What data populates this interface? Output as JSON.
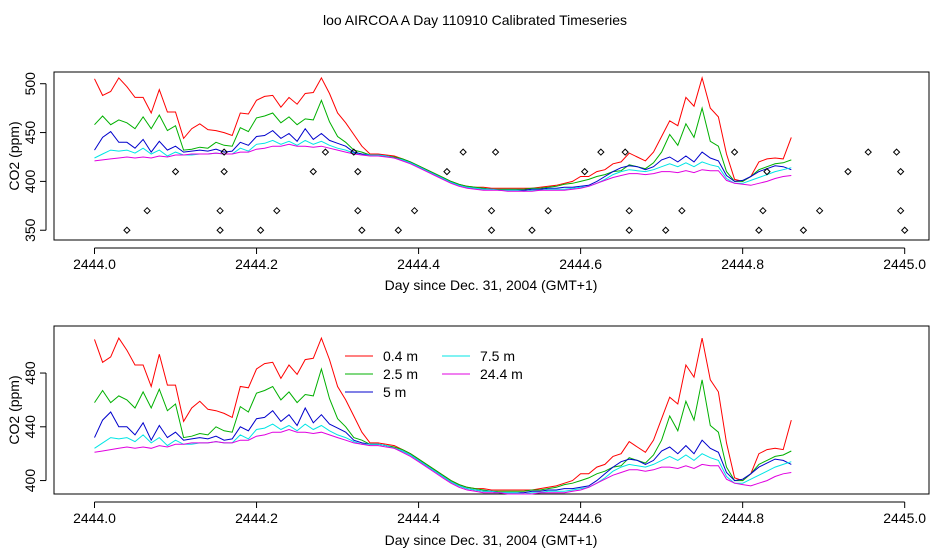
{
  "figure_title": "loo AIRCOA A  Day 110910  Calibrated Timeseries",
  "chart_data": [
    {
      "type": "line",
      "panel": "top",
      "xlabel": "Day since Dec. 31, 2004 (GMT+1)",
      "ylabel": "CO2 (ppm)",
      "xlim": [
        2443.95,
        2445.03
      ],
      "ylim": [
        340,
        512
      ],
      "x_ticks": [
        "2444.0",
        "2444.2",
        "2444.4",
        "2444.6",
        "2444.8",
        "2445.0"
      ],
      "y_ticks": [
        "350",
        "400",
        "450",
        "500"
      ],
      "x_tick_values": [
        2444.0,
        2444.2,
        2444.4,
        2444.6,
        2444.8,
        2445.0
      ],
      "y_tick_values": [
        350,
        400,
        450,
        500
      ],
      "grid": false,
      "legend": "none",
      "series": [
        {
          "name": "0.4 m",
          "color": "#ff0000",
          "values": [
            505,
            488,
            492,
            506,
            497,
            486,
            486,
            470,
            494,
            471,
            471,
            444,
            454,
            459,
            453,
            452,
            450,
            447,
            470,
            469,
            483,
            487,
            488,
            476,
            486,
            479,
            490,
            491,
            506,
            490,
            470,
            460,
            448,
            436,
            428,
            428,
            427,
            426,
            423,
            420,
            416,
            412,
            408,
            404,
            400,
            397,
            395,
            394,
            394,
            393,
            393,
            393,
            393,
            393,
            393,
            394,
            395,
            396,
            398,
            400,
            405,
            405,
            410,
            412,
            418,
            420,
            429,
            425,
            421,
            430,
            446,
            462,
            457,
            486,
            477,
            506,
            475,
            466,
            428,
            402,
            400,
            405,
            420,
            423,
            424,
            423,
            445
          ]
        },
        {
          "name": "2.5 m",
          "color": "#00b000",
          "values": [
            458,
            467,
            458,
            463,
            460,
            454,
            466,
            454,
            468,
            452,
            457,
            432,
            433,
            435,
            434,
            440,
            437,
            436,
            455,
            451,
            465,
            467,
            470,
            460,
            466,
            458,
            464,
            463,
            483,
            461,
            446,
            440,
            432,
            430,
            427,
            427,
            426,
            425,
            423,
            420,
            416,
            412,
            408,
            404,
            400,
            397,
            395,
            394,
            393,
            392,
            392,
            392,
            392,
            392,
            393,
            393,
            394,
            395,
            397,
            398,
            400,
            402,
            405,
            407,
            410,
            411,
            417,
            415,
            413,
            419,
            430,
            448,
            437,
            459,
            445,
            475,
            441,
            436,
            410,
            400,
            400,
            405,
            412,
            415,
            418,
            419,
            422
          ]
        },
        {
          "name": "5 m",
          "color": "#0000cc",
          "values": [
            432,
            445,
            451,
            440,
            440,
            434,
            443,
            430,
            441,
            432,
            436,
            430,
            431,
            432,
            431,
            433,
            430,
            431,
            440,
            437,
            446,
            447,
            452,
            444,
            449,
            441,
            454,
            443,
            449,
            442,
            439,
            436,
            430,
            428,
            427,
            427,
            426,
            424,
            422,
            419,
            415,
            411,
            407,
            403,
            399,
            396,
            394,
            393,
            392,
            392,
            391,
            391,
            391,
            391,
            392,
            392,
            393,
            393,
            394,
            394,
            395,
            396,
            400,
            405,
            410,
            414,
            416,
            415,
            412,
            415,
            422,
            425,
            420,
            426,
            420,
            430,
            424,
            421,
            406,
            400,
            401,
            405,
            410,
            413,
            416,
            415,
            412
          ]
        },
        {
          "name": "7.5 m",
          "color": "#00e5e5",
          "values": [
            424,
            428,
            432,
            431,
            432,
            429,
            434,
            428,
            432,
            426,
            430,
            427,
            427,
            428,
            428,
            429,
            428,
            428,
            434,
            431,
            438,
            439,
            442,
            438,
            441,
            437,
            442,
            438,
            441,
            437,
            434,
            432,
            429,
            427,
            427,
            427,
            426,
            424,
            422,
            419,
            415,
            411,
            407,
            403,
            399,
            396,
            394,
            393,
            392,
            392,
            391,
            391,
            391,
            390,
            391,
            391,
            392,
            392,
            392,
            393,
            394,
            395,
            398,
            402,
            407,
            410,
            412,
            411,
            410,
            412,
            415,
            418,
            415,
            419,
            415,
            420,
            417,
            415,
            403,
            398,
            398,
            401,
            404,
            407,
            410,
            412,
            414
          ]
        },
        {
          "name": "24.4 m",
          "color": "#e000e0",
          "values": [
            421,
            422,
            423,
            424,
            425,
            424,
            425,
            424,
            426,
            425,
            427,
            427,
            428,
            428,
            428,
            429,
            428,
            428,
            430,
            430,
            433,
            434,
            436,
            436,
            438,
            436,
            436,
            435,
            436,
            434,
            432,
            430,
            428,
            427,
            426,
            426,
            425,
            424,
            421,
            418,
            414,
            410,
            406,
            402,
            398,
            395,
            393,
            392,
            391,
            391,
            391,
            390,
            390,
            390,
            390,
            391,
            391,
            391,
            391,
            392,
            393,
            395,
            398,
            401,
            404,
            406,
            408,
            408,
            407,
            408,
            410,
            410,
            409,
            411,
            409,
            412,
            411,
            411,
            401,
            398,
            397,
            396,
            398,
            400,
            403,
            405,
            406
          ]
        }
      ],
      "x": [
        2444.0,
        2444.01,
        2444.02,
        2444.03,
        2444.04,
        2444.05,
        2444.06,
        2444.07,
        2444.08,
        2444.09,
        2444.1,
        2444.11,
        2444.12,
        2444.13,
        2444.14,
        2444.15,
        2444.16,
        2444.17,
        2444.18,
        2444.19,
        2444.2,
        2444.21,
        2444.22,
        2444.23,
        2444.24,
        2444.25,
        2444.26,
        2444.27,
        2444.28,
        2444.29,
        2444.3,
        2444.31,
        2444.32,
        2444.33,
        2444.34,
        2444.35,
        2444.36,
        2444.37,
        2444.38,
        2444.39,
        2444.4,
        2444.41,
        2444.42,
        2444.43,
        2444.44,
        2444.45,
        2444.46,
        2444.47,
        2444.48,
        2444.49,
        2444.5,
        2444.51,
        2444.52,
        2444.53,
        2444.54,
        2444.55,
        2444.56,
        2444.57,
        2444.58,
        2444.59,
        2444.6,
        2444.61,
        2444.62,
        2444.63,
        2444.64,
        2444.65,
        2444.66,
        2444.67,
        2444.68,
        2444.69,
        2444.7,
        2444.71,
        2444.72,
        2444.73,
        2444.74,
        2444.75,
        2444.76,
        2444.77,
        2444.78,
        2444.79,
        2444.8,
        2444.81,
        2444.82,
        2444.83,
        2444.84,
        2444.85,
        2444.86
      ],
      "points": {
        "symbol": "open-diamond",
        "color": "#000000",
        "x": [
          2444.04,
          2444.065,
          2444.1,
          2444.155,
          2444.155,
          2444.16,
          2444.16,
          2444.205,
          2444.225,
          2444.27,
          2444.285,
          2444.32,
          2444.325,
          2444.325,
          2444.33,
          2444.375,
          2444.395,
          2444.435,
          2444.455,
          2444.49,
          2444.49,
          2444.495,
          2444.54,
          2444.56,
          2444.605,
          2444.625,
          2444.655,
          2444.66,
          2444.66,
          2444.705,
          2444.725,
          2444.79,
          2444.82,
          2444.825,
          2444.83,
          2444.875,
          2444.895,
          2444.93,
          2444.955,
          2444.99,
          2444.995,
          2444.995,
          2445.0
        ],
        "y": [
          350,
          370,
          410,
          350,
          370,
          410,
          430,
          350,
          370,
          410,
          430,
          430,
          410,
          370,
          350,
          350,
          370,
          410,
          430,
          350,
          370,
          430,
          350,
          370,
          410,
          430,
          430,
          370,
          350,
          350,
          370,
          430,
          350,
          370,
          410,
          350,
          370,
          410,
          430,
          430,
          410,
          370,
          350
        ]
      }
    },
    {
      "type": "line",
      "panel": "bottom",
      "xlabel": "Day since Dec. 31, 2004 (GMT+1)",
      "ylabel": "CO2 (ppm)",
      "xlim": [
        2443.95,
        2445.03
      ],
      "ylim": [
        390,
        515
      ],
      "x_ticks": [
        "2444.0",
        "2444.2",
        "2444.4",
        "2444.6",
        "2444.8",
        "2445.0"
      ],
      "y_ticks": [
        "400",
        "440",
        "480"
      ],
      "x_tick_values": [
        2444.0,
        2444.2,
        2444.4,
        2444.6,
        2444.8,
        2445.0
      ],
      "y_tick_values": [
        400,
        440,
        480
      ],
      "grid": false,
      "legend": "top-left",
      "legend_entries": [
        "0.4 m",
        "2.5 m",
        "5 m",
        "7.5 m",
        "24.4 m"
      ]
    }
  ]
}
